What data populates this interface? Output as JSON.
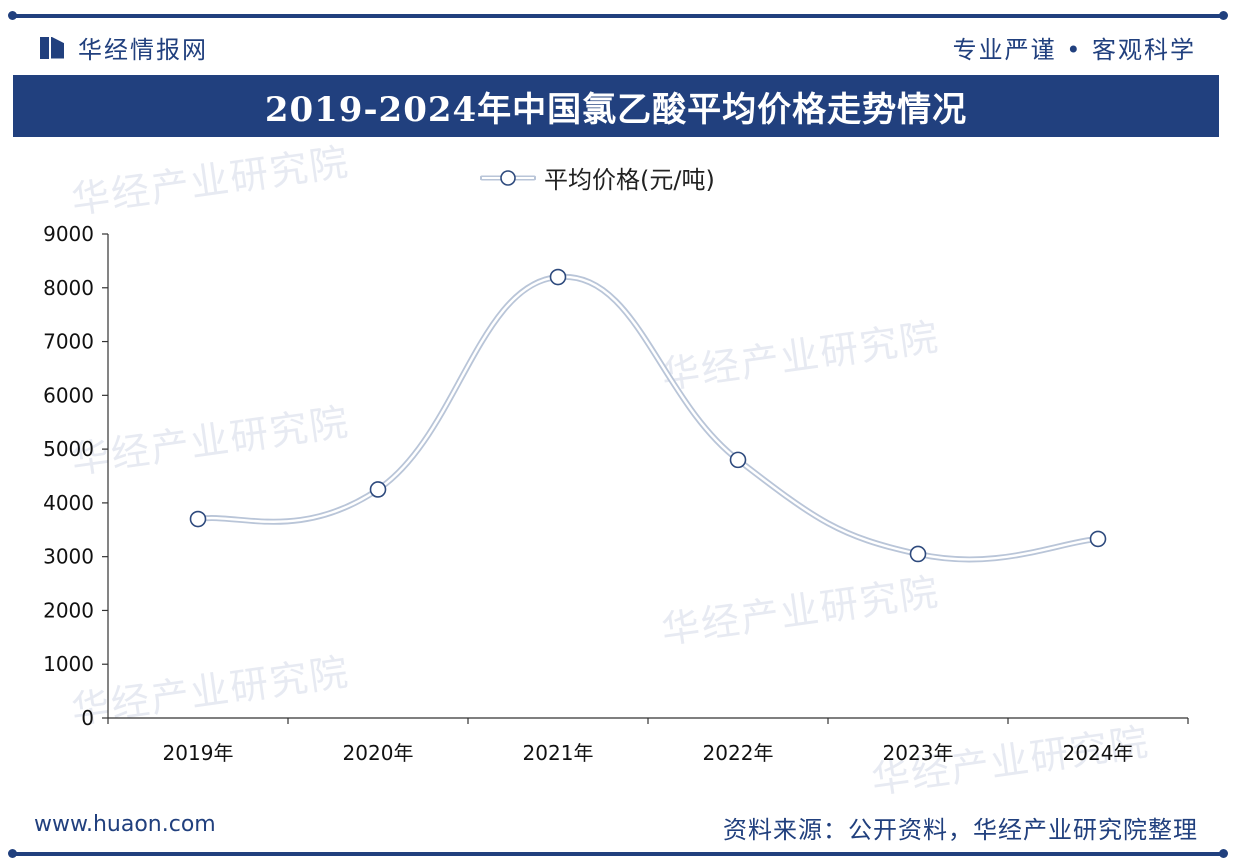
{
  "header": {
    "brand": "华经情报网",
    "slogan": "专业严谨 • 客观科学",
    "title": "2019-2024年中国氯乙酸平均价格走势情况"
  },
  "footer": {
    "website": "www.huaon.com",
    "source": "资料来源：公开资料，华经产业研究院整理"
  },
  "watermark": "华经产业研究院",
  "colors": {
    "brand": "#21407e",
    "line": "#b9c5d8",
    "marker_stroke": "#2e4a7d"
  },
  "chart_data": {
    "type": "line",
    "categories": [
      "2019年",
      "2020年",
      "2021年",
      "2022年",
      "2023年",
      "2024年"
    ],
    "series": [
      {
        "name": "平均价格(元/吨)",
        "values": [
          3700,
          4250,
          8200,
          4800,
          3050,
          3330
        ]
      }
    ],
    "ylim": [
      0,
      9000
    ],
    "yticks": [
      0,
      1000,
      2000,
      3000,
      4000,
      5000,
      6000,
      7000,
      8000,
      9000
    ],
    "smooth": true,
    "legend": "top-center",
    "grid": false
  }
}
